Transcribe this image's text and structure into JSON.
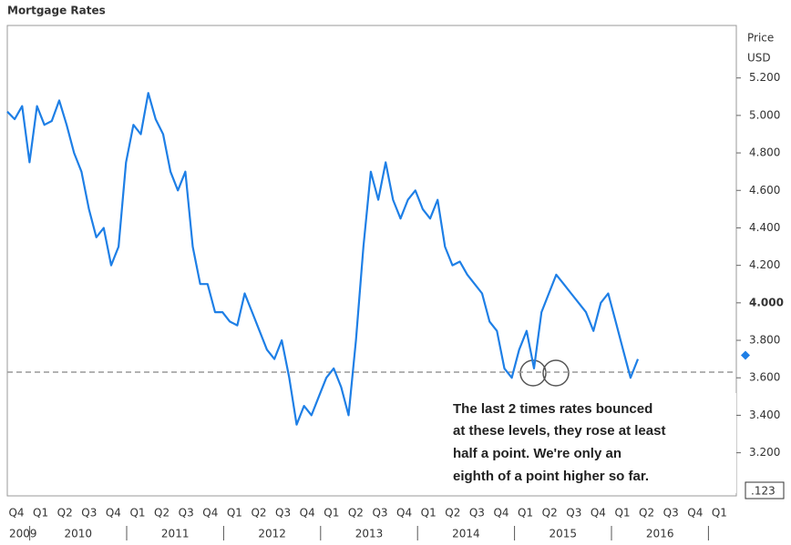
{
  "chart_data": {
    "type": "line",
    "title": "Mortgage Rates",
    "y_axis_label": [
      "Price",
      "USD"
    ],
    "quarters": [
      "Q4",
      "Q1",
      "Q2",
      "Q3",
      "Q4",
      "Q1",
      "Q2",
      "Q3",
      "Q4",
      "Q1",
      "Q2",
      "Q3",
      "Q4",
      "Q1",
      "Q2",
      "Q3",
      "Q4",
      "Q1",
      "Q2",
      "Q3",
      "Q4",
      "Q1",
      "Q2",
      "Q3",
      "Q4",
      "Q1",
      "Q2",
      "Q3",
      "Q4",
      "Q1"
    ],
    "years": [
      "2009",
      "2010",
      "2011",
      "2012",
      "2013",
      "2014",
      "2015",
      "2016"
    ],
    "series": [
      {
        "name": "Mortgage Rates",
        "color": "#1e7fe6",
        "values": [
          5.02,
          4.98,
          5.05,
          4.75,
          5.05,
          4.95,
          4.97,
          5.08,
          4.95,
          4.8,
          4.7,
          4.5,
          4.35,
          4.4,
          4.2,
          4.3,
          4.75,
          4.95,
          4.9,
          5.12,
          4.98,
          4.9,
          4.7,
          4.6,
          4.7,
          4.3,
          4.1,
          4.1,
          3.95,
          3.95,
          3.9,
          3.88,
          4.05,
          3.95,
          3.85,
          3.75,
          3.7,
          3.8,
          3.6,
          3.35,
          3.45,
          3.4,
          3.5,
          3.6,
          3.65,
          3.55,
          3.4,
          3.8,
          4.3,
          4.7,
          4.55,
          4.75,
          4.55,
          4.45,
          4.55,
          4.6,
          4.5,
          4.45,
          4.55,
          4.3,
          4.2,
          4.22,
          4.15,
          4.1,
          4.05,
          3.9,
          3.85,
          3.65,
          3.6,
          3.75,
          3.85,
          3.65,
          3.95,
          4.05,
          4.15,
          4.1,
          4.05,
          4.0,
          3.95,
          3.85,
          4.0,
          4.05,
          3.9,
          3.75,
          3.6,
          3.7
        ]
      }
    ],
    "reference_line": 3.63,
    "last_marker": 3.72,
    "ylim": [
      2.97,
      5.48
    ],
    "yticks": [
      {
        "value": 3.2,
        "label": "3.200"
      },
      {
        "value": 3.4,
        "label": "3.400"
      },
      {
        "value": 3.6,
        "label": "3.600"
      },
      {
        "value": 3.8,
        "label": "3.800"
      },
      {
        "value": 4.0,
        "label": "4.000"
      },
      {
        "value": 4.2,
        "label": "4.200"
      },
      {
        "value": 4.4,
        "label": "4.400"
      },
      {
        "value": 4.6,
        "label": "4.600"
      },
      {
        "value": 4.8,
        "label": "4.800"
      },
      {
        "value": 5.0,
        "label": "5.000"
      },
      {
        "value": 5.2,
        "label": "5.200"
      }
    ],
    "price_box": ".123",
    "annotation": [
      "The last 2 times rates bounced",
      "at these levels, they rose at least",
      "half a point.  We're only an",
      "eighth of a point higher so far."
    ]
  }
}
